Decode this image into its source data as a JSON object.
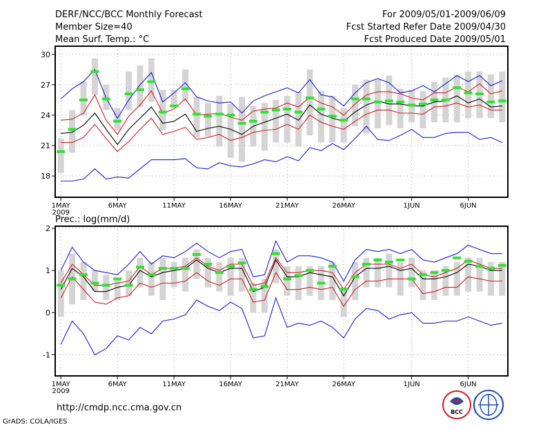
{
  "header": {
    "title": "DERF/NCC/BCC Monthly Forecast",
    "member_size": "Member Size=40",
    "variable": "Mean Surf. Temp.: °C",
    "period": "For 2009/05/01-2009/06/09",
    "fcst_started": "Fcst Started Refer Date 2009/04/30",
    "fcst_produced": "Fcst Produced Date 2009/05/01"
  },
  "footer": {
    "url": "http://cmdp.ncc.cma.gov.cn",
    "grads_credit": "GrADS: COLA/IGES",
    "logo_text": "BCC"
  },
  "colors": {
    "spread": "#d4d4d4",
    "mean": "#000000",
    "inner": "#d01c24",
    "outer": "#1a1ad6",
    "median": "#33e033"
  },
  "chart_data": [
    {
      "type": "line",
      "title": "Mean Surf. Temp.: °C",
      "x_tick_labels": [
        "1MAY",
        "6MAY",
        "11MAY",
        "16MAY",
        "21MAY",
        "26MAY",
        "1JUN",
        "6JUN"
      ],
      "x_tick_days": [
        1,
        6,
        11,
        16,
        21,
        26,
        32,
        37
      ],
      "year_label": "2009",
      "y_ticks": [
        18,
        21,
        24,
        27,
        30
      ],
      "ylim": [
        15.9,
        30.8
      ],
      "xlim": [
        0.5,
        40.5
      ],
      "grid": true,
      "days": [
        1,
        2,
        3,
        4,
        5,
        6,
        7,
        8,
        9,
        10,
        11,
        12,
        13,
        14,
        15,
        16,
        17,
        18,
        19,
        20,
        21,
        22,
        23,
        24,
        25,
        26,
        27,
        28,
        29,
        30,
        31,
        32,
        33,
        34,
        35,
        36,
        37,
        38,
        39,
        40
      ],
      "series": [
        {
          "name": "ensemble max",
          "color": "outer",
          "values": [
            25.6,
            26.6,
            27.3,
            28.5,
            25.7,
            23.7,
            25.5,
            27.0,
            28.2,
            25.3,
            26.2,
            27.2,
            25.8,
            25.4,
            25.2,
            25.3,
            24.2,
            25.4,
            25.9,
            26.3,
            26.7,
            26.2,
            27.5,
            26.0,
            25.8,
            24.9,
            26.2,
            27.2,
            27.6,
            27.2,
            26.2,
            26.4,
            26.9,
            26.3,
            27.1,
            27.9,
            27.3,
            27.9,
            26.9,
            27.4
          ]
        },
        {
          "name": "upper quartile",
          "color": "inner",
          "values": [
            23.5,
            23.6,
            24.2,
            26.0,
            23.5,
            22.1,
            23.9,
            25.0,
            26.4,
            24.2,
            24.6,
            25.6,
            24.0,
            24.1,
            24.2,
            23.8,
            23.5,
            24.4,
            24.6,
            24.7,
            25.2,
            24.8,
            25.8,
            25.2,
            24.8,
            24.0,
            25.1,
            26.0,
            26.3,
            26.3,
            26.1,
            25.7,
            25.5,
            26.2,
            26.2,
            26.8,
            26.3,
            27.1,
            26.1,
            26.4
          ]
        },
        {
          "name": "ensemble mean",
          "color": "mean",
          "values": [
            22.2,
            22.3,
            23.0,
            24.2,
            22.6,
            21.1,
            22.6,
            23.7,
            24.8,
            23.2,
            23.4,
            24.1,
            22.4,
            22.7,
            22.9,
            22.6,
            22.1,
            22.9,
            23.3,
            23.7,
            24.1,
            23.5,
            25.0,
            24.1,
            23.7,
            23.4,
            24.3,
            25.0,
            25.4,
            25.1,
            25.1,
            24.9,
            24.9,
            25.3,
            25.4,
            25.9,
            25.2,
            25.6,
            24.8,
            24.9
          ]
        },
        {
          "name": "lower quartile",
          "color": "inner",
          "values": [
            21.3,
            21.3,
            21.8,
            23.1,
            21.7,
            20.4,
            21.4,
            22.6,
            23.7,
            22.1,
            22.4,
            22.8,
            21.6,
            21.8,
            22.1,
            21.5,
            21.8,
            22.3,
            22.5,
            22.6,
            23.1,
            22.6,
            24.0,
            23.3,
            22.9,
            22.6,
            23.4,
            24.1,
            24.5,
            24.5,
            24.2,
            24.2,
            24.1,
            24.8,
            24.9,
            25.2,
            24.8,
            25.0,
            24.5,
            24.5
          ]
        },
        {
          "name": "ensemble min",
          "color": "outer",
          "values": [
            17.5,
            17.5,
            17.7,
            18.7,
            17.7,
            17.9,
            17.8,
            18.7,
            19.6,
            19.6,
            19.6,
            19.7,
            18.8,
            18.7,
            19.3,
            19.0,
            18.9,
            19.2,
            19.6,
            19.4,
            19.9,
            19.5,
            20.8,
            20.5,
            21.2,
            20.6,
            21.7,
            22.9,
            21.6,
            21.5,
            22.0,
            22.6,
            21.8,
            21.8,
            22.2,
            22.3,
            22.3,
            21.6,
            21.8,
            21.3
          ]
        }
      ],
      "box_ranges": [
        [
          18.3,
          21.7
        ],
        [
          20.3,
          24.5
        ],
        [
          24.0,
          27.3
        ],
        [
          26.0,
          29.6
        ],
        [
          24.5,
          27.0
        ],
        [
          22.5,
          24.7
        ],
        [
          24.5,
          28.3
        ],
        [
          24.8,
          28.9
        ],
        [
          25.3,
          29.6
        ],
        [
          22.5,
          26.5
        ],
        [
          24.8,
          26.5
        ],
        [
          25.4,
          28.5
        ],
        [
          21.8,
          25.8
        ],
        [
          21.9,
          25.2
        ],
        [
          20.9,
          25.9
        ],
        [
          19.8,
          25.1
        ],
        [
          19.4,
          25.8
        ],
        [
          20.9,
          24.9
        ],
        [
          20.5,
          25.2
        ],
        [
          21.3,
          25.5
        ],
        [
          21.3,
          25.9
        ],
        [
          20.9,
          26.3
        ],
        [
          22.0,
          28.5
        ],
        [
          21.3,
          26.4
        ],
        [
          21.3,
          25.9
        ],
        [
          21.3,
          24.7
        ],
        [
          22.9,
          27.0
        ],
        [
          22.2,
          27.5
        ],
        [
          22.7,
          27.5
        ],
        [
          23.0,
          27.9
        ],
        [
          22.7,
          26.6
        ],
        [
          23.3,
          26.5
        ],
        [
          22.7,
          26.4
        ],
        [
          23.3,
          27.3
        ],
        [
          23.3,
          27.7
        ],
        [
          23.3,
          28.0
        ],
        [
          23.7,
          28.3
        ],
        [
          23.7,
          28.3
        ],
        [
          23.7,
          28.0
        ],
        [
          23.3,
          28.3
        ]
      ],
      "median": [
        20.4,
        22.6,
        25.5,
        28.3,
        25.6,
        23.4,
        26.1,
        26.5,
        27.3,
        24.3,
        24.9,
        26.6,
        24.1,
        23.9,
        24.1,
        24.0,
        23.2,
        23.4,
        24.3,
        24.5,
        24.6,
        24.3,
        25.7,
        24.6,
        23.9,
        23.5,
        25.6,
        25.6,
        25.3,
        25.4,
        25.3,
        25.0,
        25.1,
        25.5,
        25.5,
        26.7,
        26.2,
        26.1,
        25.3,
        25.4
      ]
    },
    {
      "type": "line",
      "title": "Prec.: log(mm/d)",
      "x_tick_labels": [
        "1MAY",
        "6MAY",
        "11MAY",
        "16MAY",
        "21MAY",
        "26MAY",
        "1JUN",
        "6JUN"
      ],
      "x_tick_days": [
        1,
        6,
        11,
        16,
        21,
        26,
        32,
        37
      ],
      "year_label": "2009",
      "y_ticks": [
        -1,
        0,
        1,
        2
      ],
      "ylim": [
        -1.5,
        2.05
      ],
      "xlim": [
        0.5,
        40.5
      ],
      "grid": true,
      "days": [
        1,
        2,
        3,
        4,
        5,
        6,
        7,
        8,
        9,
        10,
        11,
        12,
        13,
        14,
        15,
        16,
        17,
        18,
        19,
        20,
        21,
        22,
        23,
        24,
        25,
        26,
        27,
        28,
        29,
        30,
        31,
        32,
        33,
        34,
        35,
        36,
        37,
        38,
        39,
        40
      ],
      "series": [
        {
          "name": "ensemble max",
          "color": "outer",
          "values": [
            1.0,
            1.55,
            1.2,
            1.0,
            0.95,
            0.9,
            1.15,
            1.45,
            1.15,
            1.35,
            1.3,
            1.45,
            1.65,
            1.45,
            1.3,
            1.45,
            1.5,
            0.85,
            0.9,
            1.7,
            1.2,
            1.35,
            1.35,
            1.3,
            1.2,
            0.75,
            1.25,
            1.5,
            1.45,
            1.5,
            1.4,
            1.5,
            1.25,
            1.2,
            1.3,
            1.4,
            1.6,
            1.5,
            1.4,
            1.4
          ]
        },
        {
          "name": "upper quartile",
          "color": "inner",
          "values": [
            0.7,
            1.15,
            0.9,
            0.65,
            0.65,
            0.7,
            0.75,
            1.1,
            0.9,
            1.05,
            1.05,
            1.1,
            1.3,
            1.1,
            1.0,
            1.15,
            1.15,
            0.65,
            0.7,
            1.3,
            0.95,
            0.95,
            1.0,
            1.0,
            0.95,
            0.55,
            0.95,
            1.15,
            1.15,
            1.15,
            1.05,
            1.15,
            0.9,
            0.85,
            0.95,
            1.05,
            1.25,
            1.15,
            1.05,
            1.05
          ]
        },
        {
          "name": "ensemble mean",
          "color": "mean",
          "values": [
            0.55,
            1.05,
            0.85,
            0.5,
            0.5,
            0.6,
            0.65,
            1.0,
            0.85,
            0.95,
            1.0,
            1.05,
            1.25,
            1.05,
            0.95,
            1.05,
            1.05,
            0.5,
            0.6,
            1.25,
            0.85,
            0.85,
            0.95,
            0.9,
            0.85,
            0.4,
            0.85,
            1.05,
            1.05,
            1.1,
            1.0,
            1.05,
            0.8,
            0.8,
            0.85,
            0.95,
            1.15,
            1.1,
            1.0,
            1.0
          ]
        },
        {
          "name": "lower quartile",
          "color": "inner",
          "values": [
            0.35,
            0.85,
            0.55,
            0.25,
            0.2,
            0.35,
            0.4,
            0.7,
            0.6,
            0.7,
            0.7,
            0.75,
            0.95,
            0.75,
            0.65,
            0.8,
            0.8,
            0.25,
            0.3,
            0.95,
            0.55,
            0.55,
            0.6,
            0.55,
            0.6,
            0.15,
            0.55,
            0.75,
            0.75,
            0.8,
            0.8,
            0.8,
            0.45,
            0.5,
            0.6,
            0.6,
            0.85,
            0.8,
            0.75,
            0.75
          ]
        },
        {
          "name": "ensemble min",
          "color": "outer",
          "values": [
            -0.75,
            -0.2,
            -0.5,
            -1.0,
            -0.85,
            -0.55,
            -0.65,
            -0.35,
            -0.5,
            -0.2,
            -0.15,
            -0.05,
            0.3,
            0.15,
            0.05,
            0.25,
            0.1,
            -0.6,
            -0.55,
            0.35,
            -0.35,
            -0.25,
            -0.3,
            -0.2,
            -0.35,
            -0.6,
            -0.15,
            0.1,
            0.05,
            -0.15,
            -0.05,
            0.0,
            -0.25,
            -0.25,
            -0.2,
            -0.2,
            -0.1,
            -0.2,
            -0.3,
            -0.25
          ]
        }
      ],
      "box_ranges": [
        [
          -0.1,
          1.0
        ],
        [
          0.2,
          1.4
        ],
        [
          0.3,
          1.2
        ],
        [
          0.5,
          1.0
        ],
        [
          0.3,
          0.9
        ],
        [
          0.3,
          0.8
        ],
        [
          0.4,
          1.0
        ],
        [
          0.6,
          1.3
        ],
        [
          0.4,
          1.2
        ],
        [
          0.3,
          1.3
        ],
        [
          0.6,
          1.2
        ],
        [
          0.5,
          1.3
        ],
        [
          0.8,
          1.5
        ],
        [
          0.6,
          1.3
        ],
        [
          0.5,
          1.2
        ],
        [
          0.4,
          1.3
        ],
        [
          0.5,
          1.3
        ],
        [
          0.0,
          0.7
        ],
        [
          0.0,
          0.8
        ],
        [
          0.7,
          1.5
        ],
        [
          0.4,
          1.1
        ],
        [
          0.3,
          1.1
        ],
        [
          0.4,
          1.1
        ],
        [
          0.3,
          1.1
        ],
        [
          0.3,
          1.2
        ],
        [
          -0.1,
          0.6
        ],
        [
          0.3,
          1.2
        ],
        [
          0.6,
          1.3
        ],
        [
          0.6,
          1.3
        ],
        [
          0.6,
          1.4
        ],
        [
          0.4,
          1.2
        ],
        [
          0.6,
          1.3
        ],
        [
          0.3,
          1.0
        ],
        [
          0.3,
          1.0
        ],
        [
          0.4,
          1.1
        ],
        [
          0.4,
          1.2
        ],
        [
          0.5,
          1.3
        ],
        [
          0.5,
          1.3
        ],
        [
          0.4,
          1.2
        ],
        [
          0.4,
          1.2
        ]
      ],
      "median": [
        0.65,
        0.8,
        0.9,
        0.7,
        0.65,
        0.8,
        0.65,
        1.08,
        0.9,
        1.05,
        1.05,
        1.05,
        1.38,
        1.15,
        0.95,
        1.1,
        1.18,
        0.55,
        0.62,
        1.4,
        0.8,
        0.88,
        1.0,
        0.7,
        1.1,
        0.55,
        0.85,
        1.15,
        1.25,
        1.2,
        1.25,
        0.8,
        0.9,
        0.95,
        1.0,
        1.3,
        1.22,
        1.1,
        1.05,
        1.12
      ]
    }
  ]
}
